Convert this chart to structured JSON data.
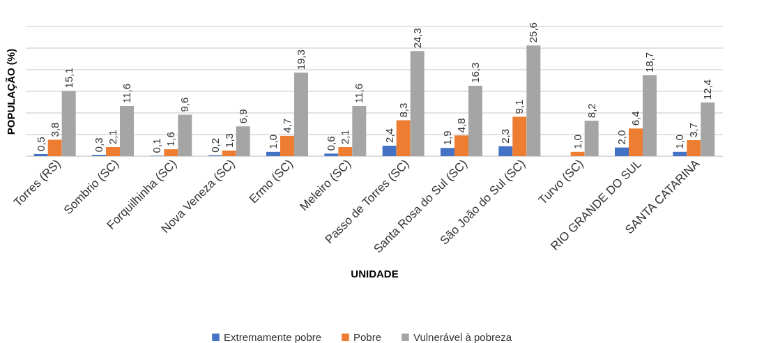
{
  "chart_data": {
    "type": "bar",
    "categories": [
      "Torres (RS)",
      "Sombrio (SC)",
      "Forquilhinha (SC)",
      "Nova Veneza (SC)",
      "Ermo (SC)",
      "Meleiro (SC)",
      "Passo de Torres (SC)",
      "Santa Rosa do Sul (SC)",
      "São João do Sul (SC)",
      "Turvo (SC)",
      "RIO GRANDE DO SUL",
      "SANTA CATARINA"
    ],
    "xlabel": "UNIDADE",
    "ylabel": "POPULAÇÃO (%)",
    "series": [
      {
        "name": "Extremamente pobre",
        "color": "#4472c4",
        "values": [
          0.5,
          0.3,
          0.1,
          0.2,
          1.0,
          0.6,
          2.4,
          1.9,
          2.3,
          null,
          2.0,
          1.0
        ],
        "value_labels": [
          "0,5",
          "0,3",
          "0,1",
          "0,2",
          "1,0",
          "0,6",
          "2,4",
          "1,9",
          "2,3",
          null,
          "2,0",
          "1,0"
        ]
      },
      {
        "name": "Pobre",
        "color": "#ed7d31",
        "values": [
          3.8,
          2.1,
          1.6,
          1.3,
          4.7,
          2.1,
          8.3,
          4.8,
          9.1,
          1.0,
          6.4,
          3.7
        ],
        "value_labels": [
          "3,8",
          "2,1",
          "1,6",
          "1,3",
          "4,7",
          "2,1",
          "8,3",
          "4,8",
          "9,1",
          "1,0",
          "6,4",
          "3,7"
        ]
      },
      {
        "name": "Vulnerável à pobreza",
        "color": "#a5a5a5",
        "values": [
          15.1,
          11.6,
          9.6,
          6.9,
          19.3,
          11.6,
          24.3,
          16.3,
          25.6,
          8.2,
          18.7,
          12.4
        ],
        "value_labels": [
          "15,1",
          "11,6",
          "9,6",
          "6,9",
          "19,3",
          "11,6",
          "24,3",
          "16,3",
          "25,6",
          "8,2",
          "18,7",
          "12,4"
        ]
      }
    ],
    "ylim": [
      0,
      30
    ],
    "yticks": [
      {
        "value": 0,
        "label": null
      },
      {
        "value": 5,
        "label": null
      },
      {
        "value": 10,
        "label": null
      },
      {
        "value": 15,
        "label": null
      },
      {
        "value": 20,
        "label": null
      },
      {
        "value": 25,
        "label": null
      },
      {
        "value": 30,
        "label": null
      }
    ],
    "tick_labels": "x",
    "grid": "y",
    "legend": "bottom"
  }
}
